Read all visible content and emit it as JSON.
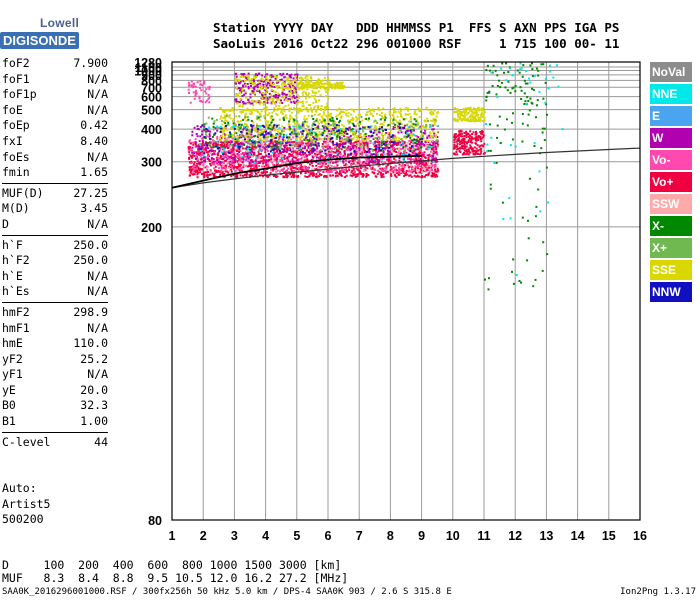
{
  "logo": {
    "line1": "Lowell",
    "line2": "DIGISONDE"
  },
  "header": {
    "line1": "Station YYYY DAY   DDD HHMMSS P1  FFS S AXN PPS IGA PS",
    "line2": "SaoLuis 2016 Oct22 296 001000 RSF     1 715 100 00- 11"
  },
  "params_groups": [
    [
      {
        "name": "foF2",
        "value": "7.900"
      },
      {
        "name": "foF1",
        "value": "N/A"
      },
      {
        "name": "foF1p",
        "value": "N/A"
      },
      {
        "name": "foE",
        "value": "N/A"
      },
      {
        "name": "foEp",
        "value": "0.42"
      },
      {
        "name": "fxI",
        "value": "8.40"
      },
      {
        "name": "foEs",
        "value": "N/A"
      },
      {
        "name": "fmin",
        "value": "1.65"
      }
    ],
    [
      {
        "name": "MUF(D)",
        "value": "27.25"
      },
      {
        "name": "M(D)",
        "value": "3.45"
      },
      {
        "name": "D",
        "value": "N/A"
      }
    ],
    [
      {
        "name": "h`F",
        "value": "250.0"
      },
      {
        "name": "h`F2",
        "value": "250.0"
      },
      {
        "name": "h`E",
        "value": "N/A"
      },
      {
        "name": "h`Es",
        "value": "N/A"
      }
    ],
    [
      {
        "name": "hmF2",
        "value": "298.9"
      },
      {
        "name": "hmF1",
        "value": "N/A"
      },
      {
        "name": "hmE",
        "value": "110.0"
      },
      {
        "name": "yF2",
        "value": "25.2"
      },
      {
        "name": "yF1",
        "value": "N/A"
      },
      {
        "name": "yE",
        "value": "20.0"
      },
      {
        "name": "B0",
        "value": "32.3"
      },
      {
        "name": "B1",
        "value": "1.00"
      }
    ],
    [
      {
        "name": "C-level",
        "value": "44"
      }
    ]
  ],
  "auto": {
    "label": "Auto:",
    "artist": "Artist5",
    "version": "500200"
  },
  "muf_table": {
    "row1": "D     100  200  400  600  800 1000 1500 3000 [km]",
    "row2": "MUF   8.3  8.4  8.8  9.5 10.5 12.0 16.2 27.2 [MHz]"
  },
  "footer": "SAA0K_2016296001000.RSF / 300fx256h 50 kHz 5.0 km / DPS-4 SAA0K 903 / 2.6 S 315.8 E",
  "version": "Ion2Png 1.3.17",
  "legend": [
    {
      "label": "NoVal",
      "color": "#8c8c8c"
    },
    {
      "label": "NNE",
      "color": "#00e8e8"
    },
    {
      "label": "E",
      "color": "#4aa4f0"
    },
    {
      "label": "W",
      "color": "#b000b0"
    },
    {
      "label": "Vo-",
      "color": "#ff48b0"
    },
    {
      "label": "Vo+",
      "color": "#f00040"
    },
    {
      "label": "SSW",
      "color": "#ffaaaa"
    },
    {
      "label": "X-",
      "color": "#008800"
    },
    {
      "label": "X+",
      "color": "#70b850"
    },
    {
      "label": "SSE",
      "color": "#d8d800"
    },
    {
      "label": "NNW",
      "color": "#1010c0"
    }
  ],
  "chart_data": {
    "type": "scatter",
    "x": {
      "min": 1,
      "max": 16,
      "ticks": [
        1,
        2,
        3,
        4,
        5,
        6,
        7,
        8,
        9,
        10,
        11,
        12,
        13,
        14,
        15,
        16
      ],
      "unit": "MHz"
    },
    "y": {
      "min": 80,
      "max": 1280,
      "ticks": [
        80,
        200,
        300,
        400,
        500,
        600,
        700,
        800,
        900,
        1000,
        1100,
        1280
      ],
      "scale": "reciprocal",
      "unit": "km"
    },
    "grid": true,
    "legend_position": "right",
    "clusters": [
      {
        "mode": "Vo+",
        "f": [
          1.5,
          9.5
        ],
        "h": [
          270,
          360
        ],
        "n": 1500
      },
      {
        "mode": "Vo-",
        "f": [
          1.5,
          9.5
        ],
        "h": [
          280,
          380
        ],
        "n": 600
      },
      {
        "mode": "W",
        "f": [
          1.6,
          9.5
        ],
        "h": [
          300,
          420
        ],
        "n": 500
      },
      {
        "mode": "SSE",
        "f": [
          2.5,
          9.5
        ],
        "h": [
          360,
          520
        ],
        "n": 650
      },
      {
        "mode": "X+",
        "f": [
          2.0,
          9.5
        ],
        "h": [
          330,
          470
        ],
        "n": 200
      },
      {
        "mode": "X-",
        "f": [
          2.0,
          9.0
        ],
        "h": [
          340,
          460
        ],
        "n": 150
      },
      {
        "mode": "NNW",
        "f": [
          1.8,
          9.0
        ],
        "h": [
          320,
          430
        ],
        "n": 150
      },
      {
        "mode": "NNE",
        "f": [
          1.8,
          9.5
        ],
        "h": [
          300,
          420
        ],
        "n": 80
      },
      {
        "mode": "SSW",
        "f": [
          1.8,
          9.5
        ],
        "h": [
          280,
          380
        ],
        "n": 120
      },
      {
        "mode": "Vo+",
        "f": [
          10.0,
          11.0
        ],
        "h": [
          320,
          400
        ],
        "n": 200
      },
      {
        "mode": "SSE",
        "f": [
          10.0,
          11.0
        ],
        "h": [
          440,
          520
        ],
        "n": 150
      },
      {
        "mode": "W",
        "f": [
          3.0,
          5.0
        ],
        "h": [
          550,
          950
        ],
        "n": 250
      },
      {
        "mode": "SSE",
        "f": [
          3.0,
          6.0
        ],
        "h": [
          500,
          900
        ],
        "n": 300
      },
      {
        "mode": "SSE",
        "f": [
          5.0,
          6.5
        ],
        "h": [
          700,
          780
        ],
        "n": 120
      },
      {
        "mode": "X-",
        "f": [
          11.0,
          13.0
        ],
        "h": [
          150,
          1280
        ],
        "n": 120
      },
      {
        "mode": "NNE",
        "f": [
          11.0,
          13.5
        ],
        "h": [
          150,
          1280
        ],
        "n": 40
      },
      {
        "mode": "Vo-",
        "f": [
          1.5,
          2.2
        ],
        "h": [
          550,
          800
        ],
        "n": 50
      }
    ],
    "trace": {
      "f": [
        1.0,
        2.0,
        3.0,
        4.0,
        5.0,
        6.0,
        7.0,
        8.0,
        9.0
      ],
      "h": [
        250,
        262,
        275,
        285,
        297,
        305,
        310,
        312,
        314
      ]
    },
    "lower_curve": {
      "f": [
        1,
        2,
        3,
        4,
        5,
        6,
        7,
        8,
        9,
        10,
        11,
        12,
        13,
        14,
        15,
        16
      ],
      "h": [
        250,
        258,
        265,
        272,
        278,
        284,
        290,
        296,
        302,
        308,
        313,
        318,
        323,
        327,
        331,
        335
      ]
    }
  }
}
